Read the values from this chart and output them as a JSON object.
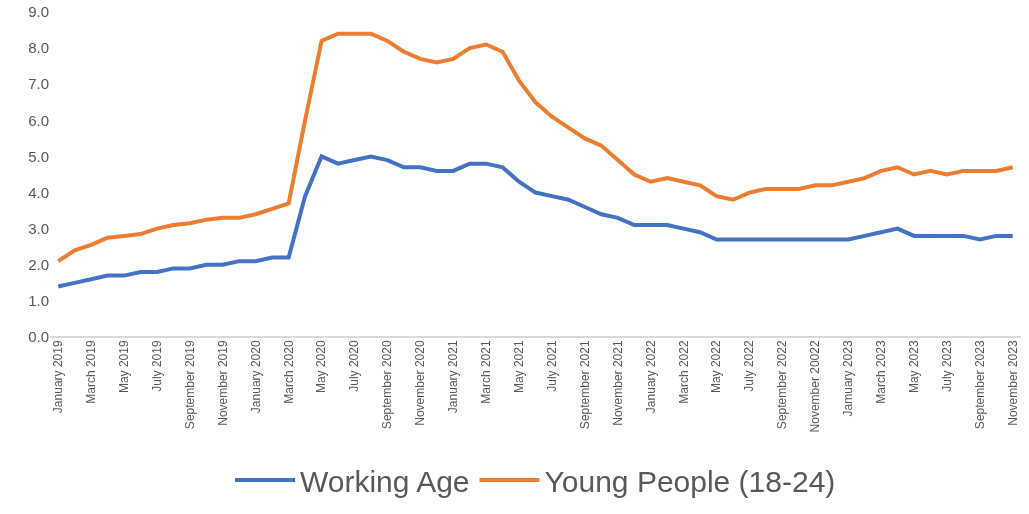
{
  "chart_data": {
    "type": "line",
    "categories": [
      "January 2019",
      null,
      "March 2019",
      null,
      "May 2019",
      null,
      "July 2019",
      null,
      "September 2019",
      null,
      "November 2019",
      null,
      "January 2020",
      null,
      "March 2020",
      null,
      "May 2020",
      null,
      "July 2020",
      null,
      "September 2020",
      null,
      "November 2020",
      null,
      "January 2021",
      null,
      "March 2021",
      null,
      "May 2021",
      null,
      "July 2021",
      null,
      "September 2021",
      null,
      "November 2021",
      null,
      "January 2022",
      null,
      "March 2022",
      null,
      "May 2022",
      null,
      "July 2022",
      null,
      "September 2022",
      null,
      "November 20022",
      null,
      "Jamuary 2023",
      null,
      "March 2023",
      null,
      "May 2023",
      null,
      "July 2023",
      null,
      "September 2023",
      null,
      "November 2023"
    ],
    "series": [
      {
        "name": "Working Age",
        "color": "#4472c4",
        "values": [
          1.4,
          1.5,
          1.6,
          1.7,
          1.7,
          1.8,
          1.8,
          1.9,
          1.9,
          2.0,
          2.0,
          2.1,
          2.1,
          2.2,
          2.2,
          3.9,
          5.0,
          4.8,
          4.9,
          5.0,
          4.9,
          4.7,
          4.7,
          4.6,
          4.6,
          4.8,
          4.8,
          4.7,
          4.3,
          4.0,
          3.9,
          3.8,
          3.6,
          3.4,
          3.3,
          3.1,
          3.1,
          3.1,
          3.0,
          2.9,
          2.7,
          2.7,
          2.7,
          2.7,
          2.7,
          2.7,
          2.7,
          2.7,
          2.7,
          2.8,
          2.9,
          3.0,
          2.8,
          2.8,
          2.8,
          2.8,
          2.7,
          2.8,
          2.8
        ]
      },
      {
        "name": "Young People (18-24)",
        "color": "#ed7d31",
        "values": [
          2.1,
          2.4,
          2.55,
          2.75,
          2.8,
          2.85,
          3.0,
          3.1,
          3.15,
          3.25,
          3.3,
          3.3,
          3.4,
          3.55,
          3.7,
          6.0,
          8.2,
          8.4,
          8.4,
          8.4,
          8.2,
          7.9,
          7.7,
          7.6,
          7.7,
          8.0,
          8.1,
          7.9,
          7.1,
          6.5,
          6.1,
          5.8,
          5.5,
          5.3,
          4.9,
          4.5,
          4.3,
          4.4,
          4.3,
          4.2,
          3.9,
          3.8,
          4.0,
          4.1,
          4.1,
          4.1,
          4.2,
          4.2,
          4.3,
          4.4,
          4.6,
          4.7,
          4.5,
          4.6,
          4.5,
          4.6,
          4.6,
          4.6,
          4.7
        ]
      }
    ],
    "ylim": [
      0,
      9
    ],
    "yticks": [
      {
        "value": 0,
        "label": "0.0"
      },
      {
        "value": 1,
        "label": "1.0"
      },
      {
        "value": 2,
        "label": "2.0"
      },
      {
        "value": 3,
        "label": "3.0"
      },
      {
        "value": 4,
        "label": "4.0"
      },
      {
        "value": 5,
        "label": "5.0"
      },
      {
        "value": 6,
        "label": "6.0"
      },
      {
        "value": 7,
        "label": "7.0"
      },
      {
        "value": 8,
        "label": "8.0"
      },
      {
        "value": 9,
        "label": "9.0"
      }
    ],
    "grid": false,
    "legend": "bottom",
    "marker": "none",
    "line_style": "solid"
  }
}
